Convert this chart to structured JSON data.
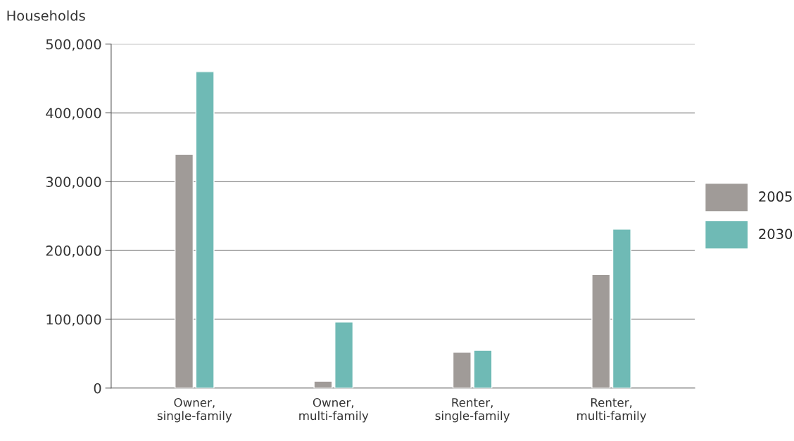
{
  "chart_data": {
    "type": "bar",
    "ylabel": "Households",
    "categories": [
      "Owner,\nsingle-family",
      "Owner,\nmulti-family",
      "Renter,\nsingle-family",
      "Renter,\nmulti-family"
    ],
    "series": [
      {
        "name": "2005",
        "color": "#a09b98",
        "values": [
          340000,
          10000,
          52000,
          165000
        ]
      },
      {
        "name": "2030",
        "color": "#6fbab5",
        "values": [
          460000,
          96000,
          55000,
          231000
        ]
      }
    ],
    "ylim": [
      0,
      500000
    ],
    "yticks": [
      {
        "value": 0,
        "label": "0"
      },
      {
        "value": 100000,
        "label": "100,000"
      },
      {
        "value": 200000,
        "label": "200,000"
      },
      {
        "value": 300000,
        "label": "300,000"
      },
      {
        "value": 400000,
        "label": "400,000"
      },
      {
        "value": 500000,
        "label": "500,000"
      }
    ],
    "grid": "y",
    "legend": "right"
  }
}
